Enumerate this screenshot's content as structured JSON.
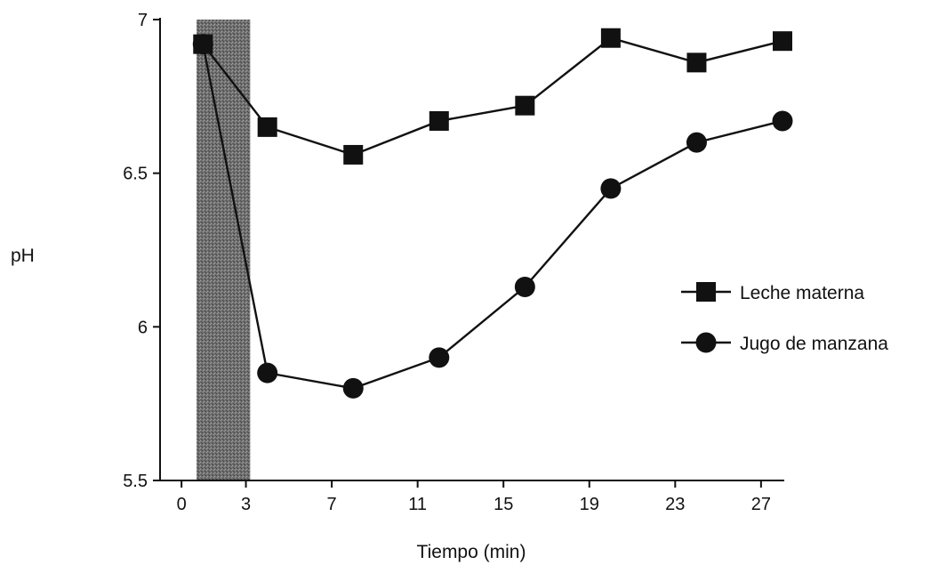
{
  "chart_data": {
    "type": "line",
    "xlabel": "Tiempo (min)",
    "ylabel": "pH",
    "xlim": [
      -1,
      28
    ],
    "ylim": [
      5.5,
      7
    ],
    "xticks": [
      0,
      3,
      7,
      11,
      15,
      19,
      23,
      27
    ],
    "yticks": [
      5.5,
      6,
      6.5,
      7
    ],
    "ytick_labels": [
      "5.5",
      "6",
      "6.5",
      "7"
    ],
    "shaded_region": {
      "x_start": 0.7,
      "x_end": 3.2
    },
    "series": [
      {
        "name": "Leche materna",
        "marker": "square",
        "x": [
          1,
          4,
          8,
          12,
          16,
          20,
          24,
          28
        ],
        "y": [
          6.92,
          6.65,
          6.56,
          6.67,
          6.72,
          6.94,
          6.86,
          6.93
        ]
      },
      {
        "name": "Jugo de manzana",
        "marker": "circle",
        "x": [
          1,
          4,
          8,
          12,
          16,
          20,
          24,
          28
        ],
        "y": [
          6.92,
          5.85,
          5.8,
          5.9,
          6.13,
          6.45,
          6.6,
          6.67
        ]
      }
    ],
    "legend_position": "right",
    "grid": false
  },
  "colors": {
    "ink": "#111111",
    "shade": "#6e6e6e"
  }
}
